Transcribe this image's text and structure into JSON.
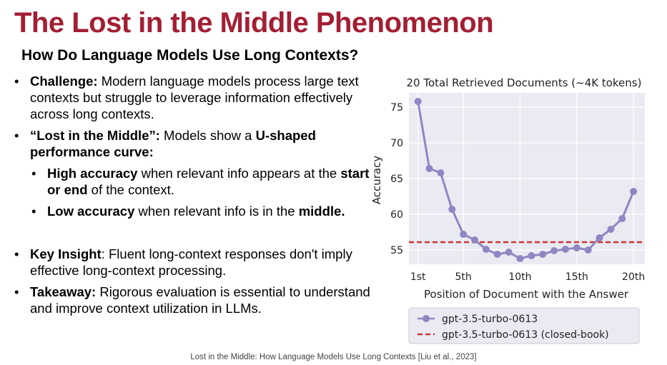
{
  "slide": {
    "title": "The Lost in the Middle Phenomenon",
    "subtitle": "How Do Language Models Use Long Contexts?",
    "footer": "Lost in the Middle: How Language Models Use Long Contexts [Liu et al., 2023]"
  },
  "bullets": {
    "challenge": {
      "label": "Challenge:",
      "text": " Modern language models process large text contexts but struggle to leverage information effectively across long contexts."
    },
    "lost": {
      "label": "“Lost in the Middle”:",
      "text1": " Models show a ",
      "bold2": "U-shaped performance curve:"
    },
    "high": {
      "label": "High accuracy",
      "text1": " when relevant info appears at the ",
      "bold2": "start or end",
      "text2": " of the context."
    },
    "low": {
      "label": "Low accuracy",
      "text1": " when relevant info is in the ",
      "bold2": "middle."
    },
    "insight": {
      "label": "Key Insight",
      "text": ": Fluent long-context responses don't imply effective long-context processing."
    },
    "takeaway": {
      "label": "Takeaway:",
      "text": " Rigorous evaluation is essential to understand and improve context utilization in LLMs."
    }
  },
  "chart_data": {
    "type": "line",
    "title": "20 Total Retrieved Documents (~4K tokens)",
    "xlabel": "Position of Document with the Answer",
    "ylabel": "Accuracy",
    "x": [
      1,
      2,
      3,
      4,
      5,
      6,
      7,
      8,
      9,
      10,
      11,
      12,
      13,
      14,
      15,
      16,
      17,
      18,
      19,
      20
    ],
    "xticks": [
      1,
      5,
      10,
      15,
      20
    ],
    "xtick_labels": [
      "1st",
      "5th",
      "10th",
      "15th",
      "20th"
    ],
    "yticks": [
      55,
      60,
      65,
      70,
      75
    ],
    "ytick_labels": [
      "55",
      "60",
      "65",
      "70",
      "75"
    ],
    "xlim": [
      0.2,
      21
    ],
    "ylim": [
      53,
      77
    ],
    "grid": true,
    "series": [
      {
        "name": "gpt-3.5-turbo-0613",
        "style": "line-marker",
        "color": "#8e87c3",
        "values": [
          75.8,
          66.4,
          65.8,
          60.7,
          57.2,
          56.4,
          55.1,
          54.4,
          54.7,
          53.8,
          54.2,
          54.4,
          54.9,
          55.1,
          55.3,
          55.0,
          56.7,
          57.9,
          59.4,
          63.2
        ]
      },
      {
        "name": "gpt-3.5-turbo-0613 (closed-book)",
        "style": "dashed",
        "color": "#cc3333",
        "value": 56.1
      }
    ],
    "legend": "bottom"
  }
}
